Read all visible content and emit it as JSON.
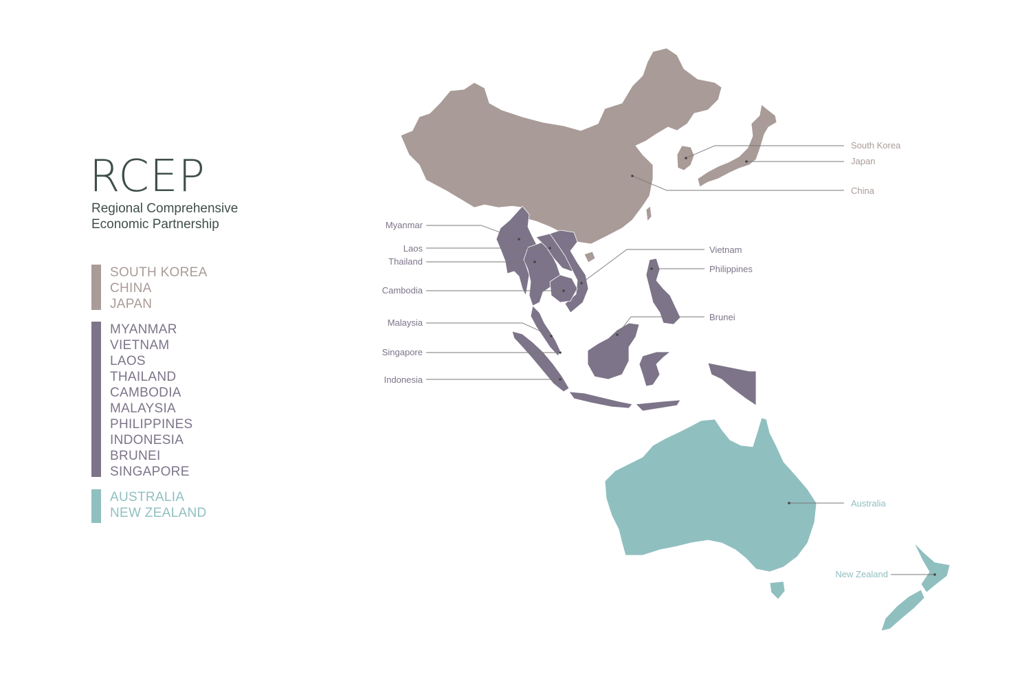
{
  "title": "RCEP",
  "subtitle_lines": [
    "Regional Comprehensive",
    "Economic Partnership"
  ],
  "colors": {
    "east_asia": "#a99b97",
    "asean": "#7d7489",
    "oceania": "#90bfc0",
    "title": "#3e4f48",
    "leader": "#777777"
  },
  "legend": {
    "groups": [
      {
        "key": "east_asia",
        "items": [
          "SOUTH KOREA",
          "CHINA",
          "JAPAN"
        ]
      },
      {
        "key": "asean",
        "items": [
          "MYANMAR",
          "VIETNAM",
          "LAOS",
          "THAILAND",
          "CAMBODIA",
          "MALAYSIA",
          "PHILIPPINES",
          "INDONESIA",
          "BRUNEI",
          "SINGAPORE"
        ]
      },
      {
        "key": "oceania",
        "items": [
          "AUSTRALIA",
          "NEW ZEALAND"
        ]
      }
    ]
  },
  "map_labels": {
    "south_korea": "South Korea",
    "japan": "Japan",
    "china": "China",
    "myanmar": "Myanmar",
    "laos": "Laos",
    "thailand": "Thailand",
    "cambodia": "Cambodia",
    "malaysia": "Malaysia",
    "singapore": "Singapore",
    "indonesia": "Indonesia",
    "vietnam": "Vietnam",
    "philippines": "Philippines",
    "brunei": "Brunei",
    "australia": "Australia",
    "new_zealand": "New Zealand"
  }
}
